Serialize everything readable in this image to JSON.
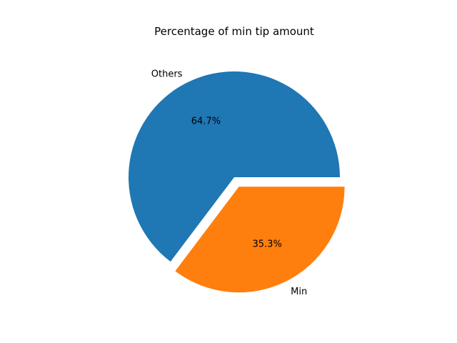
{
  "chart_data": {
    "type": "pie",
    "title": "Percentage of min tip amount",
    "categories": [
      "Others",
      "Min"
    ],
    "values": [
      64.7,
      35.3
    ],
    "percent_labels": [
      "64.7%",
      "35.3%"
    ],
    "colors": [
      "#1f77b4",
      "#ff7f0e"
    ],
    "explode": [
      0,
      0.1
    ],
    "start_angle_deg": 0,
    "direction": "counterclockwise"
  }
}
